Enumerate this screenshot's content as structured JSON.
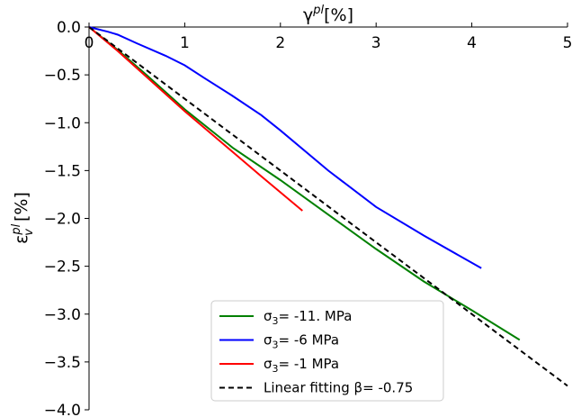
{
  "chart_data": {
    "type": "line",
    "xlabel": "γ^{pl}[%]",
    "ylabel": "ε_v^{pl}[%]",
    "xlim": [
      0,
      5
    ],
    "ylim": [
      -4.0,
      0.0
    ],
    "x_axis_position": "top",
    "x_ticks": [
      0,
      1,
      2,
      3,
      4,
      5
    ],
    "y_ticks": [
      0.0,
      -0.5,
      -1.0,
      -1.5,
      -2.0,
      -2.5,
      -3.0,
      -3.5,
      -4.0
    ],
    "x_tick_labels": [
      "0",
      "1",
      "2",
      "3",
      "4",
      "5"
    ],
    "y_tick_labels": [
      "0.0",
      "−0.5",
      "−1.0",
      "−1.5",
      "−2.0",
      "−2.5",
      "−3.0",
      "−3.5",
      "−4.0"
    ],
    "grid": false,
    "legend_position": "bottom-center",
    "series": [
      {
        "name": "σ3= -11. MPa",
        "color": "#008000",
        "style": "solid",
        "x": [
          0,
          0.1,
          0.3,
          0.6,
          1.0,
          1.5,
          2.0,
          2.5,
          3.0,
          3.5,
          4.0,
          4.5
        ],
        "y": [
          0,
          -0.08,
          -0.24,
          -0.5,
          -0.86,
          -1.26,
          -1.6,
          -1.96,
          -2.32,
          -2.66,
          -2.96,
          -3.27
        ]
      },
      {
        "name": "σ3= -6 MPa",
        "color": "#0000ff",
        "style": "solid",
        "x": [
          0,
          0.2,
          0.3,
          0.5,
          0.8,
          1.0,
          1.2,
          1.5,
          1.8,
          2.0,
          2.5,
          3.0,
          3.5,
          4.1
        ],
        "y": [
          0,
          -0.05,
          -0.08,
          -0.17,
          -0.3,
          -0.4,
          -0.53,
          -0.72,
          -0.92,
          -1.08,
          -1.5,
          -1.88,
          -2.18,
          -2.52
        ]
      },
      {
        "name": "σ3= -1 MPa",
        "color": "#ff0000",
        "style": "solid",
        "x": [
          0,
          0.3,
          0.6,
          1.0,
          1.4,
          1.8,
          2.23
        ],
        "y": [
          0,
          -0.25,
          -0.52,
          -0.88,
          -1.22,
          -1.56,
          -1.92
        ]
      },
      {
        "name": "Linear fitting β= -0.75",
        "color": "#000000",
        "style": "dashed",
        "x": [
          0,
          5
        ],
        "y": [
          0,
          -3.75
        ]
      }
    ]
  }
}
